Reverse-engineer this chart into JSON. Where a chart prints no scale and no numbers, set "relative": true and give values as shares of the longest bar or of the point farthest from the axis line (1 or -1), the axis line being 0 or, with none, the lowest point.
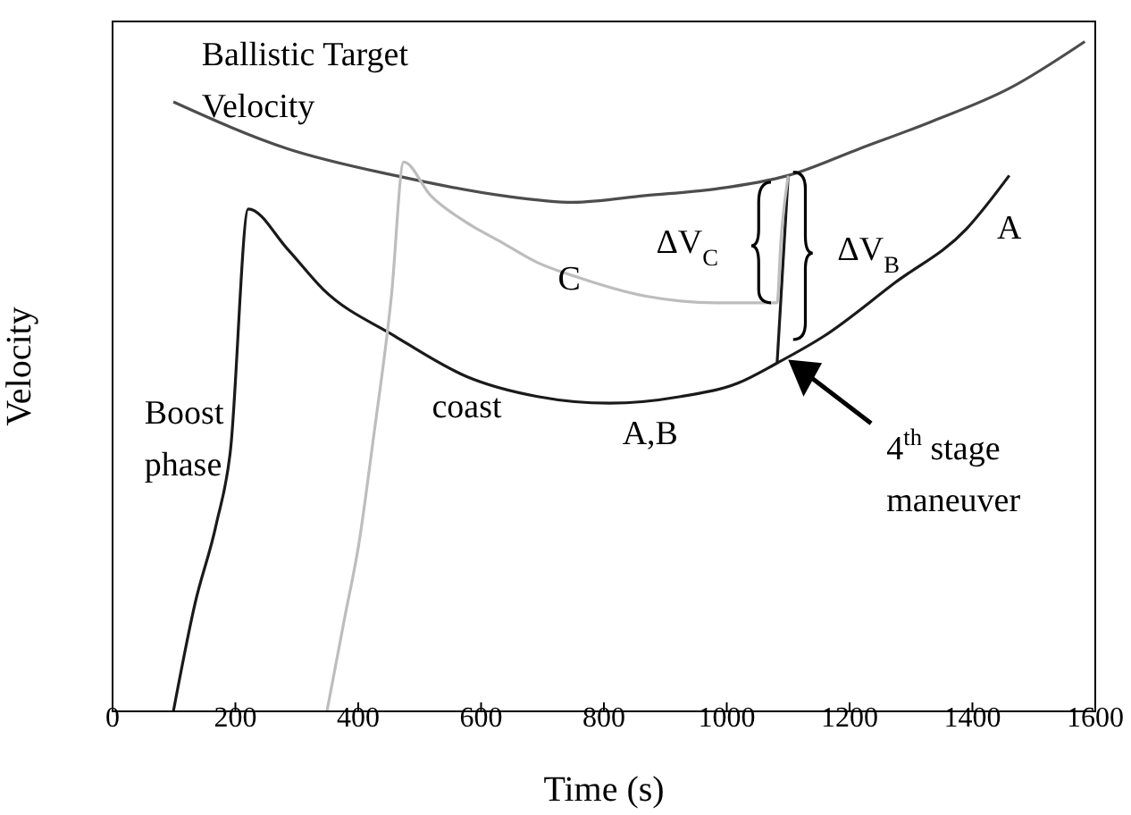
{
  "chart_data": {
    "type": "line",
    "relative": true,
    "xlabel": "Time (s)",
    "ylabel": "Velocity",
    "xlim": [
      0,
      1600
    ],
    "xticks": [
      0,
      200,
      400,
      600,
      800,
      1000,
      1200,
      1400,
      1600
    ],
    "marker": "none",
    "line_style": "solid",
    "series": [
      {
        "color": "#4d4d4d",
        "x": [
          99,
          285,
          460,
          634,
          750,
          867,
          983,
          1100,
          1216,
          1332,
          1460,
          1583
        ],
        "values": [
          0.91,
          0.84,
          0.8,
          0.77,
          0.76,
          0.77,
          0.78,
          0.8,
          0.84,
          0.88,
          0.93,
          1
        ]
      },
      {
        "color": "#1a1a1a",
        "x": [
          99,
          134,
          169,
          192,
          221,
          285,
          343,
          460,
          576,
          692,
          809,
          925,
          1018,
          1082,
          1158,
          1274,
          1390,
          1460
        ],
        "values": [
          0,
          0.16,
          0.28,
          0.39,
          0.75,
          0.69,
          0.63,
          0.56,
          0.5,
          0.47,
          0.46,
          0.47,
          0.49,
          0.52,
          0.56,
          0.64,
          0.72,
          0.8
        ]
      },
      {
        "color": "#1a1a1a",
        "x": [
          1082,
          1100
        ],
        "values": [
          0.52,
          0.8
        ]
      },
      {
        "color": "#bdbdbd",
        "x": [
          349,
          378,
          401,
          425,
          454,
          474,
          518,
          576,
          634,
          692,
          751,
          867,
          983,
          1082,
          1088,
          1100
        ],
        "values": [
          0,
          0.14,
          0.25,
          0.41,
          0.62,
          0.82,
          0.77,
          0.73,
          0.7,
          0.67,
          0.65,
          0.62,
          0.61,
          0.61,
          0.7,
          0.8
        ]
      }
    ],
    "annotations": [
      "Ballistic Target\nVelocity",
      "Boost\nphase",
      "coast",
      "A,B",
      "C",
      "ΔV$_{C}$",
      "ΔV$_{B}$",
      "A",
      "4$^{th}$ stage\nmaneuver"
    ]
  }
}
